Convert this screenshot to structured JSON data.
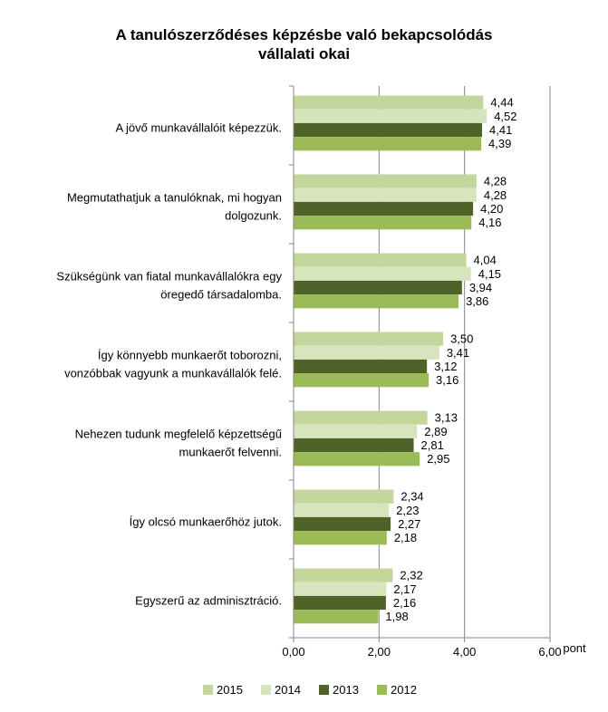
{
  "chart_data": {
    "type": "bar",
    "orientation": "horizontal",
    "title_lines": [
      "A tanulószerződéses képzésbe való bekapcsolódás",
      "vállalati okai"
    ],
    "categories": [
      [
        "A jövő munkavállalóit képezzük."
      ],
      [
        "Megmutathatjuk a tanulóknak, mi hogyan",
        "dolgozunk."
      ],
      [
        "Szükségünk van fiatal munkavállalókra egy",
        "öregedő társadalomba."
      ],
      [
        "Így könnyebb munkaerőt toborozni,",
        "vonzóbbak vagyunk a munkavállalók felé."
      ],
      [
        "Nehezen tudunk megfelelő képzettségű",
        "munkaerőt felvenni."
      ],
      [
        "Így olcsó munkaerőhöz jutok."
      ],
      [
        "Egyszerű az adminisztráció."
      ]
    ],
    "series": [
      {
        "name": "2015",
        "color": "#c3d69b",
        "values": [
          4.44,
          4.28,
          4.04,
          3.5,
          3.13,
          2.34,
          2.32
        ],
        "labels": [
          "4,44",
          "4,28",
          "4,04",
          "3,50",
          "3,13",
          "2,34",
          "2,32"
        ]
      },
      {
        "name": "2014",
        "color": "#d7e4bd",
        "values": [
          4.52,
          4.28,
          4.15,
          3.41,
          2.89,
          2.23,
          2.17
        ],
        "labels": [
          "4,52",
          "4,28",
          "4,15",
          "3,41",
          "2,89",
          "2,23",
          "2,17"
        ]
      },
      {
        "name": "2013",
        "color": "#4f6228",
        "values": [
          4.41,
          4.2,
          3.94,
          3.12,
          2.81,
          2.27,
          2.16
        ],
        "labels": [
          "4,41",
          "4,20",
          "3,94",
          "3,12",
          "2,81",
          "2,27",
          "2,16"
        ]
      },
      {
        "name": "2012",
        "color": "#9bbb59",
        "values": [
          4.39,
          4.16,
          3.86,
          3.16,
          2.95,
          2.18,
          1.98
        ],
        "labels": [
          "4,39",
          "4,16",
          "3,86",
          "3,16",
          "2,95",
          "2,18",
          "1,98"
        ]
      }
    ],
    "xlim": [
      0,
      6
    ],
    "xticks": [
      0,
      2,
      4,
      6
    ],
    "xtick_labels": [
      "0,00",
      "2,00",
      "4,00",
      "6,00"
    ],
    "xlabel": "pont",
    "grid": "vertical",
    "legend_position": "bottom"
  }
}
